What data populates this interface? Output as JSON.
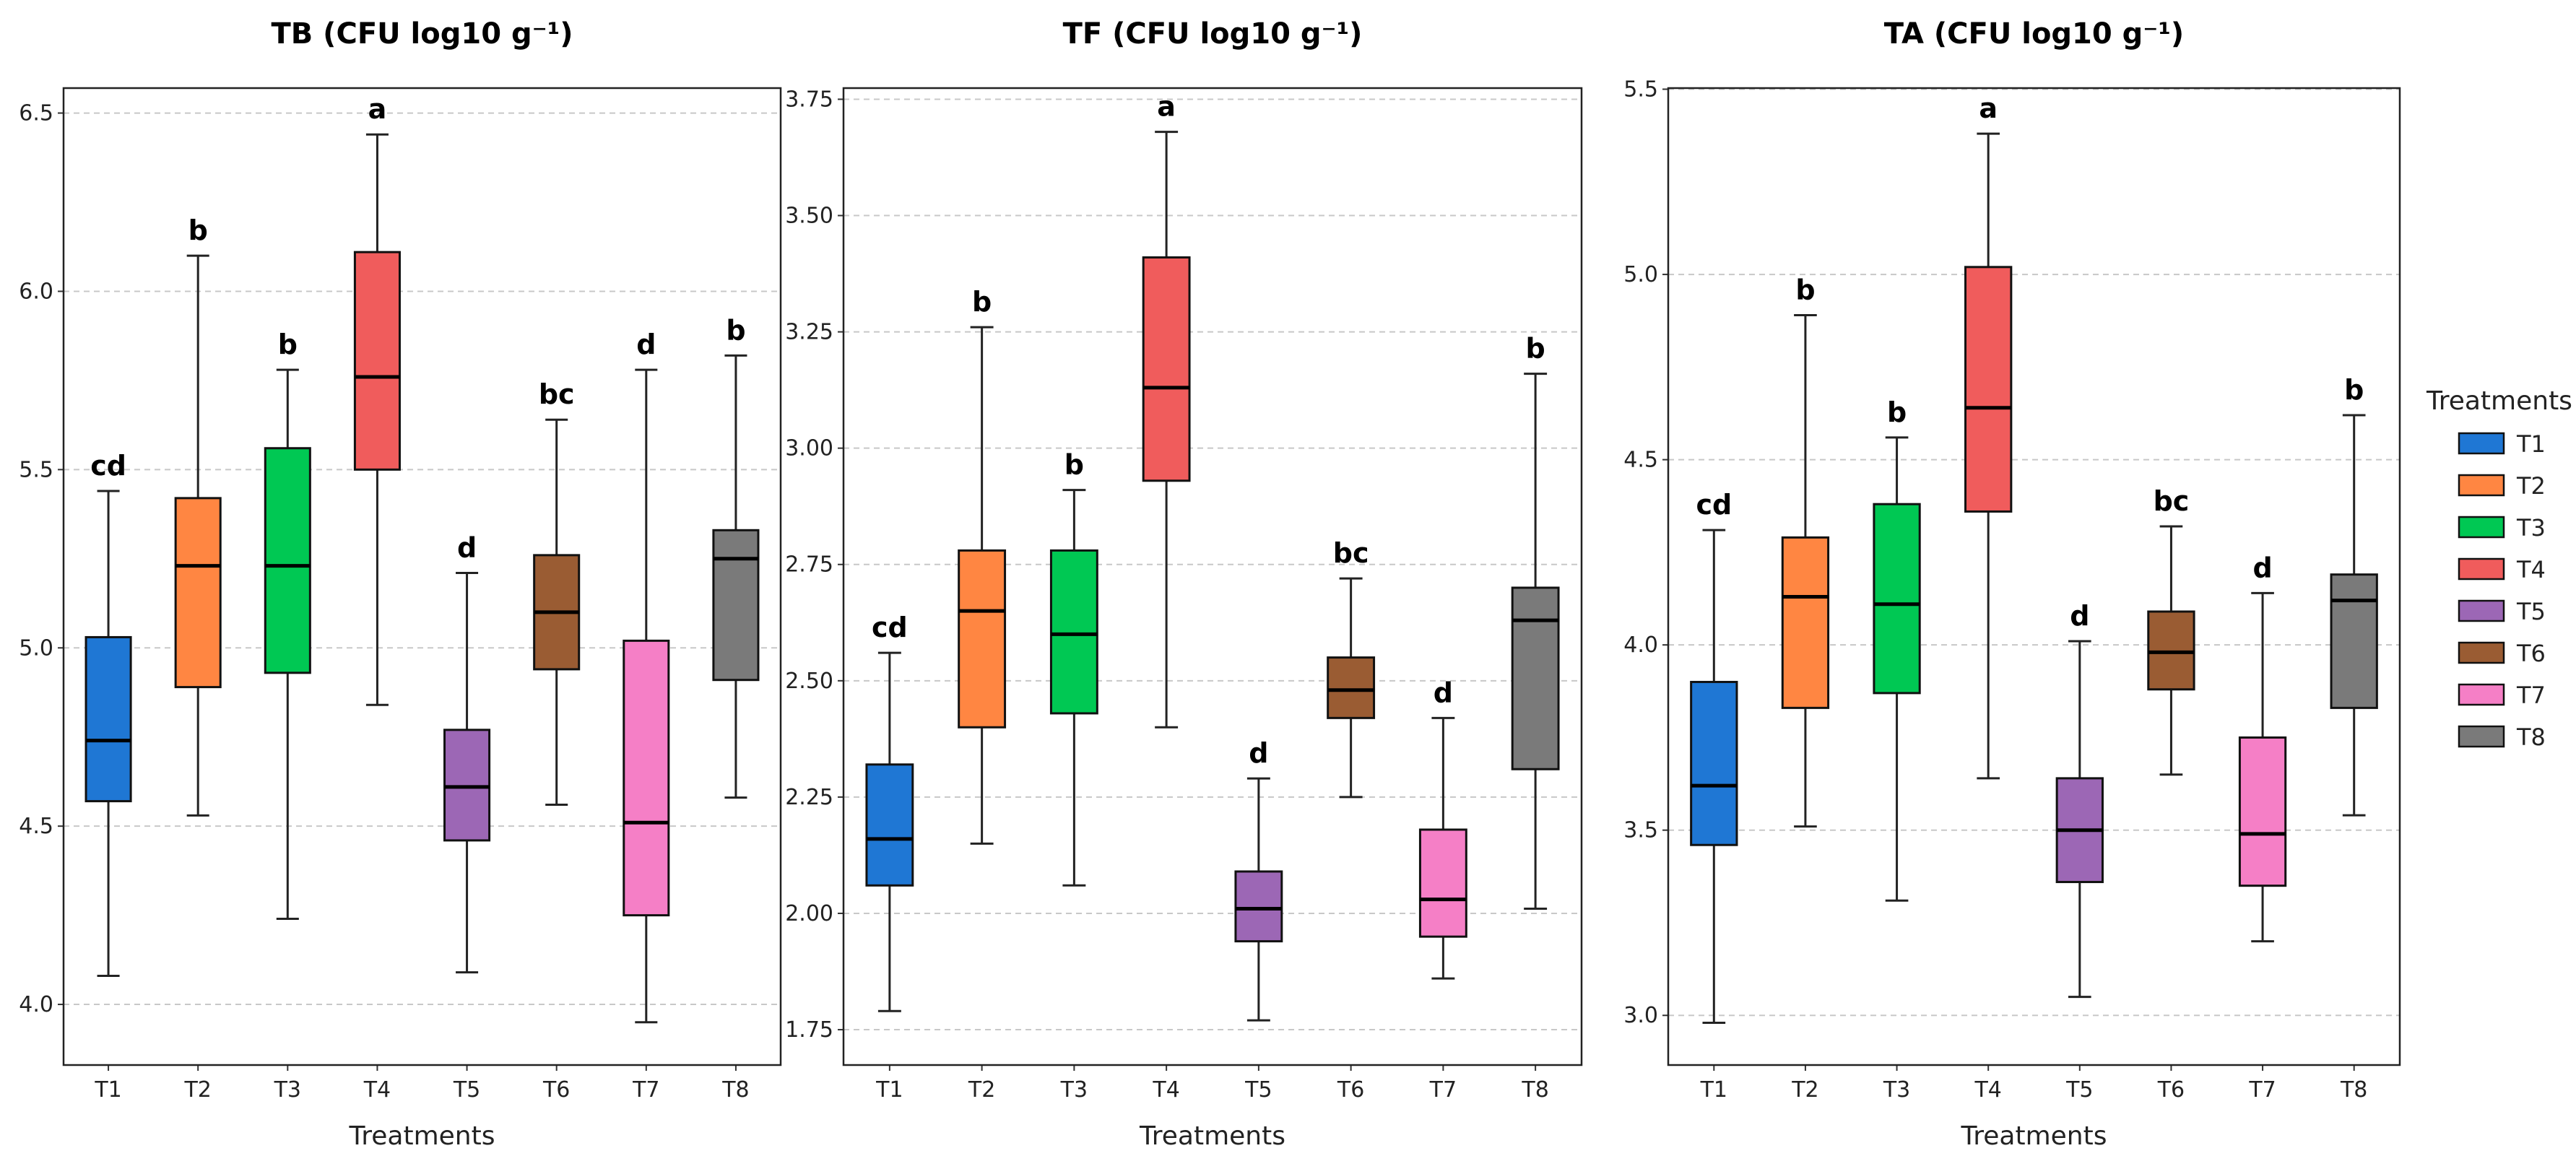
{
  "chart_data": [
    {
      "type": "box",
      "title": "TB (CFU log10 g⁻¹)",
      "xlabel": "Treatments",
      "ylabel": "",
      "ylim": [
        3.83,
        6.57
      ],
      "yticks": [
        "4.0",
        "4.5",
        "5.0",
        "5.5",
        "6.0",
        "6.5"
      ],
      "categories": [
        "T1",
        "T2",
        "T3",
        "T4",
        "T5",
        "T6",
        "T7",
        "T8"
      ],
      "boxes": [
        {
          "min": 4.08,
          "q1": 4.57,
          "median": 4.74,
          "q3": 5.03,
          "max": 5.44,
          "letter": "cd"
        },
        {
          "min": 4.53,
          "q1": 4.89,
          "median": 5.23,
          "q3": 5.42,
          "max": 6.1,
          "letter": "b"
        },
        {
          "min": 4.24,
          "q1": 4.93,
          "median": 5.23,
          "q3": 5.56,
          "max": 5.78,
          "letter": "b"
        },
        {
          "min": 4.84,
          "q1": 5.5,
          "median": 5.76,
          "q3": 6.11,
          "max": 6.44,
          "letter": "a"
        },
        {
          "min": 4.09,
          "q1": 4.46,
          "median": 4.61,
          "q3": 4.77,
          "max": 5.21,
          "letter": "d"
        },
        {
          "min": 4.56,
          "q1": 4.94,
          "median": 5.1,
          "q3": 5.26,
          "max": 5.64,
          "letter": "bc"
        },
        {
          "min": 3.95,
          "q1": 4.25,
          "median": 4.51,
          "q3": 5.02,
          "max": 5.78,
          "letter": "d"
        },
        {
          "min": 4.58,
          "q1": 4.91,
          "median": 5.25,
          "q3": 5.33,
          "max": 5.82,
          "letter": "b"
        }
      ],
      "grid": "y-dashed"
    },
    {
      "type": "box",
      "title": "TF (CFU log10 g⁻¹)",
      "xlabel": "Treatments",
      "ylabel": "",
      "ylim": [
        1.674,
        3.774
      ],
      "yticks": [
        "1.75",
        "2.00",
        "2.25",
        "2.50",
        "2.75",
        "3.00",
        "3.25",
        "3.50",
        "3.75"
      ],
      "categories": [
        "T1",
        "T2",
        "T3",
        "T4",
        "T5",
        "T6",
        "T7",
        "T8"
      ],
      "boxes": [
        {
          "min": 1.79,
          "q1": 2.06,
          "median": 2.16,
          "q3": 2.32,
          "max": 2.56,
          "letter": "cd"
        },
        {
          "min": 2.15,
          "q1": 2.4,
          "median": 2.65,
          "q3": 2.78,
          "max": 3.26,
          "letter": "b"
        },
        {
          "min": 2.06,
          "q1": 2.43,
          "median": 2.6,
          "q3": 2.78,
          "max": 2.91,
          "letter": "b"
        },
        {
          "min": 2.4,
          "q1": 2.93,
          "median": 3.13,
          "q3": 3.41,
          "max": 3.68,
          "letter": "a"
        },
        {
          "min": 1.77,
          "q1": 1.94,
          "median": 2.01,
          "q3": 2.09,
          "max": 2.29,
          "letter": "d"
        },
        {
          "min": 2.25,
          "q1": 2.42,
          "median": 2.48,
          "q3": 2.55,
          "max": 2.72,
          "letter": "bc"
        },
        {
          "min": 1.86,
          "q1": 1.95,
          "median": 2.03,
          "q3": 2.18,
          "max": 2.42,
          "letter": "d"
        },
        {
          "min": 2.01,
          "q1": 2.31,
          "median": 2.63,
          "q3": 2.7,
          "max": 3.16,
          "letter": "b"
        }
      ],
      "grid": "y-dashed"
    },
    {
      "type": "box",
      "title": "TA (CFU log10 g⁻¹)",
      "xlabel": "Treatments",
      "ylabel": "",
      "ylim": [
        2.866,
        5.503
      ],
      "yticks": [
        "3.0",
        "3.5",
        "4.0",
        "4.5",
        "5.0",
        "5.5"
      ],
      "categories": [
        "T1",
        "T2",
        "T3",
        "T4",
        "T5",
        "T6",
        "T7",
        "T8"
      ],
      "boxes": [
        {
          "min": 2.98,
          "q1": 3.46,
          "median": 3.62,
          "q3": 3.9,
          "max": 4.31,
          "letter": "cd"
        },
        {
          "min": 3.51,
          "q1": 3.83,
          "median": 4.13,
          "q3": 4.29,
          "max": 4.89,
          "letter": "b"
        },
        {
          "min": 3.31,
          "q1": 3.87,
          "median": 4.11,
          "q3": 4.38,
          "max": 4.56,
          "letter": "b"
        },
        {
          "min": 3.64,
          "q1": 4.36,
          "median": 4.64,
          "q3": 5.02,
          "max": 5.38,
          "letter": "a"
        },
        {
          "min": 3.05,
          "q1": 3.36,
          "median": 3.5,
          "q3": 3.64,
          "max": 4.01,
          "letter": "d"
        },
        {
          "min": 3.65,
          "q1": 3.88,
          "median": 3.98,
          "q3": 4.09,
          "max": 4.32,
          "letter": "bc"
        },
        {
          "min": 3.2,
          "q1": 3.35,
          "median": 3.49,
          "q3": 3.75,
          "max": 4.14,
          "letter": "d"
        },
        {
          "min": 3.54,
          "q1": 3.83,
          "median": 4.12,
          "q3": 4.19,
          "max": 4.62,
          "letter": "b"
        }
      ],
      "grid": "y-dashed"
    }
  ],
  "legend": {
    "title": "Treatments",
    "placement": "right",
    "items": [
      "T1",
      "T2",
      "T3",
      "T4",
      "T5",
      "T6",
      "T7",
      "T8"
    ]
  },
  "colors": [
    "#1f77d4",
    "#ff8642",
    "#00c853",
    "#f05c5c",
    "#9c67b5",
    "#9a5c33",
    "#f57fc6",
    "#7a7a7a"
  ]
}
